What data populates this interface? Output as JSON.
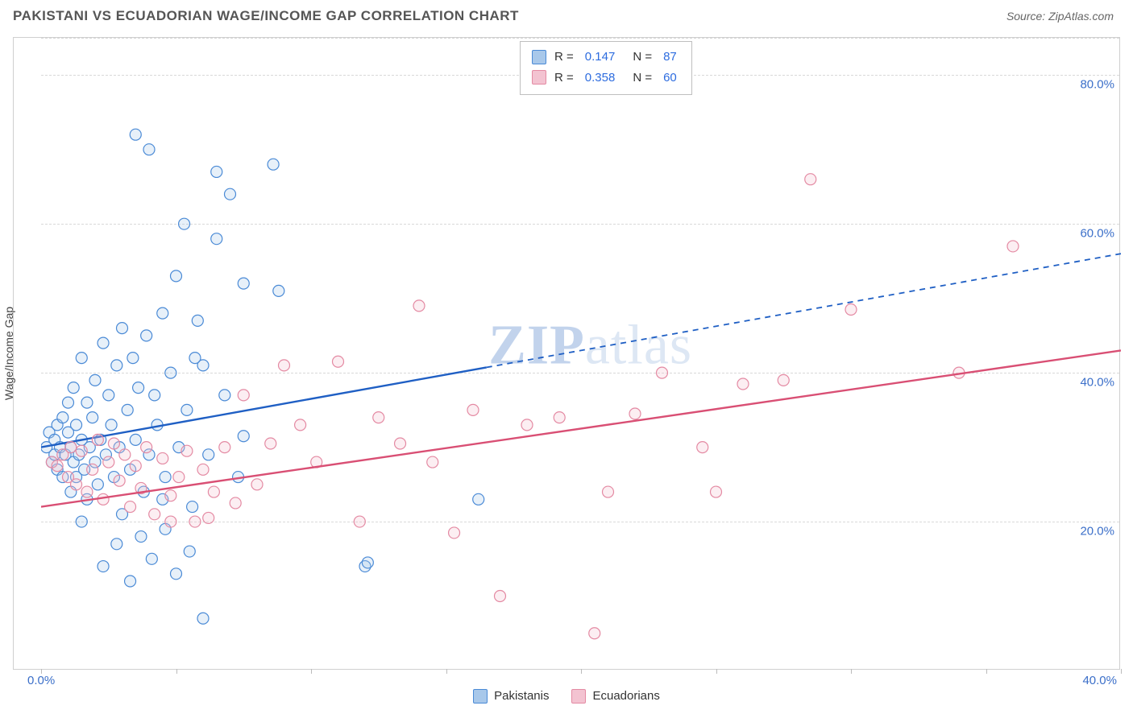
{
  "title": "PAKISTANI VS ECUADORIAN WAGE/INCOME GAP CORRELATION CHART",
  "source": "Source: ZipAtlas.com",
  "ylabel": "Wage/Income Gap",
  "watermark_zip": "ZIP",
  "watermark_atlas": "atlas",
  "chart": {
    "type": "scatter",
    "xlim": [
      0,
      40
    ],
    "ylim": [
      0,
      85
    ],
    "x_ticks": [
      0,
      5,
      10,
      15,
      20,
      25,
      30,
      35,
      40
    ],
    "x_tick_labels": [
      "0.0%",
      "",
      "",
      "",
      "",
      "",
      "",
      "",
      "40.0%"
    ],
    "y_grid_lines": [
      20,
      40,
      60,
      80,
      85
    ],
    "y_tick_labels": {
      "20": "20.0%",
      "40": "40.0%",
      "60": "60.0%",
      "80": "80.0%"
    },
    "background_color": "#ffffff",
    "grid_color": "#d9d9d9",
    "border_color": "#cfcfcf",
    "marker_radius": 7,
    "marker_stroke_width": 1.2,
    "marker_fill_opacity": 0.28,
    "line_width": 2.4,
    "series": [
      {
        "name": "Pakistanis",
        "color_stroke": "#4a8ad6",
        "color_fill": "#a8c8ea",
        "trend_color": "#1f5fc4",
        "r": "0.147",
        "n": "87",
        "trend": {
          "x1": 0,
          "y1": 30,
          "x2": 40,
          "y2": 56,
          "dashed_from_x": 16.5
        },
        "points": [
          [
            0.2,
            30
          ],
          [
            0.3,
            32
          ],
          [
            0.4,
            28
          ],
          [
            0.5,
            31
          ],
          [
            0.5,
            29
          ],
          [
            0.6,
            33
          ],
          [
            0.6,
            27
          ],
          [
            0.7,
            30
          ],
          [
            0.8,
            34
          ],
          [
            0.8,
            26
          ],
          [
            0.9,
            29
          ],
          [
            1.0,
            32
          ],
          [
            1.0,
            36
          ],
          [
            1.1,
            30
          ],
          [
            1.1,
            24
          ],
          [
            1.2,
            28
          ],
          [
            1.2,
            38
          ],
          [
            1.3,
            33
          ],
          [
            1.3,
            26
          ],
          [
            1.4,
            29
          ],
          [
            1.5,
            31
          ],
          [
            1.5,
            42
          ],
          [
            1.6,
            27
          ],
          [
            1.7,
            36
          ],
          [
            1.7,
            23
          ],
          [
            1.8,
            30
          ],
          [
            1.9,
            34
          ],
          [
            2.0,
            28
          ],
          [
            2.0,
            39
          ],
          [
            2.1,
            25
          ],
          [
            2.2,
            31
          ],
          [
            2.3,
            44
          ],
          [
            2.4,
            29
          ],
          [
            2.5,
            37
          ],
          [
            2.6,
            33
          ],
          [
            2.7,
            26
          ],
          [
            2.8,
            41
          ],
          [
            2.9,
            30
          ],
          [
            3.0,
            46
          ],
          [
            3.0,
            21
          ],
          [
            3.2,
            35
          ],
          [
            3.3,
            27
          ],
          [
            3.4,
            42
          ],
          [
            3.5,
            31
          ],
          [
            3.6,
            38
          ],
          [
            3.8,
            24
          ],
          [
            3.9,
            45
          ],
          [
            4.0,
            29
          ],
          [
            4.2,
            37
          ],
          [
            4.3,
            33
          ],
          [
            4.5,
            48
          ],
          [
            4.6,
            26
          ],
          [
            4.8,
            40
          ],
          [
            5.0,
            53
          ],
          [
            5.1,
            30
          ],
          [
            5.3,
            60
          ],
          [
            5.4,
            35
          ],
          [
            5.6,
            22
          ],
          [
            5.8,
            47
          ],
          [
            6.0,
            41
          ],
          [
            6.2,
            29
          ],
          [
            6.5,
            58
          ],
          [
            6.8,
            37
          ],
          [
            7.0,
            64
          ],
          [
            7.3,
            26
          ],
          [
            7.5,
            52
          ],
          [
            2.3,
            14
          ],
          [
            2.8,
            17
          ],
          [
            3.3,
            12
          ],
          [
            3.7,
            18
          ],
          [
            4.1,
            15
          ],
          [
            4.6,
            19
          ],
          [
            5.0,
            13
          ],
          [
            5.5,
            16
          ],
          [
            6.0,
            7
          ],
          [
            1.5,
            20
          ],
          [
            3.5,
            72
          ],
          [
            4.0,
            70
          ],
          [
            8.6,
            68
          ],
          [
            6.5,
            67
          ],
          [
            8.8,
            51
          ],
          [
            12.0,
            14
          ],
          [
            12.1,
            14.5
          ],
          [
            16.2,
            23
          ],
          [
            7.5,
            31.5
          ],
          [
            5.7,
            42
          ],
          [
            4.5,
            23
          ]
        ]
      },
      {
        "name": "Ecuadorians",
        "color_stroke": "#e48aa3",
        "color_fill": "#f3c3d1",
        "trend_color": "#d94f74",
        "r": "0.358",
        "n": "60",
        "trend": {
          "x1": 0,
          "y1": 22,
          "x2": 40,
          "y2": 43,
          "dashed_from_x": 40
        },
        "points": [
          [
            0.4,
            28
          ],
          [
            0.6,
            27.5
          ],
          [
            0.8,
            29
          ],
          [
            1.0,
            26
          ],
          [
            1.1,
            30
          ],
          [
            1.3,
            25
          ],
          [
            1.5,
            29.5
          ],
          [
            1.7,
            24
          ],
          [
            1.9,
            27
          ],
          [
            2.1,
            31
          ],
          [
            2.3,
            23
          ],
          [
            2.5,
            28
          ],
          [
            2.7,
            30.5
          ],
          [
            2.9,
            25.5
          ],
          [
            3.1,
            29
          ],
          [
            3.3,
            22
          ],
          [
            3.5,
            27.5
          ],
          [
            3.7,
            24.5
          ],
          [
            3.9,
            30
          ],
          [
            4.2,
            21
          ],
          [
            4.5,
            28.5
          ],
          [
            4.8,
            23.5
          ],
          [
            5.1,
            26
          ],
          [
            5.4,
            29.5
          ],
          [
            5.7,
            20
          ],
          [
            6.0,
            27
          ],
          [
            6.4,
            24
          ],
          [
            6.8,
            30
          ],
          [
            7.2,
            22.5
          ],
          [
            7.5,
            37
          ],
          [
            8.0,
            25
          ],
          [
            8.5,
            30.5
          ],
          [
            9.0,
            41
          ],
          [
            9.6,
            33
          ],
          [
            10.2,
            28
          ],
          [
            11.0,
            41.5
          ],
          [
            11.8,
            20
          ],
          [
            12.5,
            34
          ],
          [
            13.3,
            30.5
          ],
          [
            14.0,
            49
          ],
          [
            14.5,
            28
          ],
          [
            15.3,
            18.5
          ],
          [
            16.0,
            35
          ],
          [
            17.0,
            10
          ],
          [
            18.0,
            33
          ],
          [
            19.2,
            34
          ],
          [
            20.5,
            5
          ],
          [
            21.0,
            24
          ],
          [
            22.0,
            34.5
          ],
          [
            23.0,
            40
          ],
          [
            24.5,
            30
          ],
          [
            25.0,
            24
          ],
          [
            26.0,
            38.5
          ],
          [
            27.5,
            39
          ],
          [
            28.5,
            66
          ],
          [
            30.0,
            48.5
          ],
          [
            34.0,
            40
          ],
          [
            36.0,
            57
          ],
          [
            4.8,
            20
          ],
          [
            6.2,
            20.5
          ]
        ]
      }
    ]
  },
  "legend_top": {
    "rows": [
      {
        "r_label": "R =",
        "r_val": "0.147",
        "n_label": "N =",
        "n_val": "87"
      },
      {
        "r_label": "R =",
        "r_val": "0.358",
        "n_label": "N =",
        "n_val": "60"
      }
    ]
  }
}
